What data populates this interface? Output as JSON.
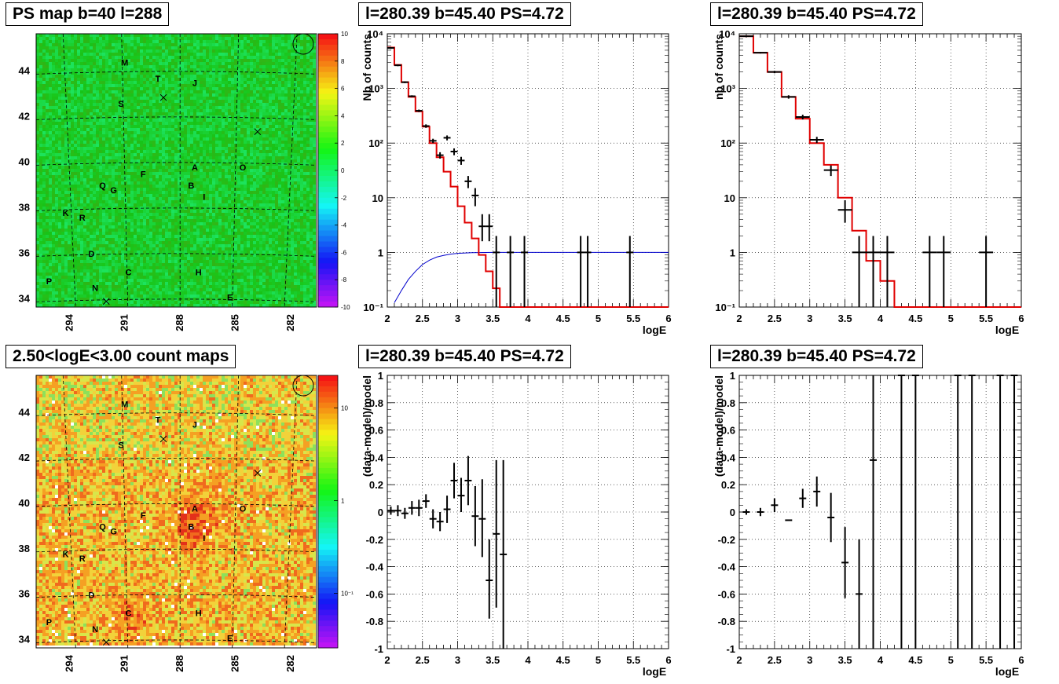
{
  "panels": {
    "map_top": {
      "title": "PS map b=40 l=288"
    },
    "map_bottom": {
      "title": "2.50<logE<3.00 count maps"
    },
    "spec_left": {
      "title": "l=280.39 b=45.40 PS=4.72"
    },
    "spec_right": {
      "title": "l=280.39 b=45.40 PS=4.72"
    },
    "res_left": {
      "title": "l=280.39 b=45.40 PS=4.72"
    },
    "res_right": {
      "title": "l=280.39 b=45.40 PS=4.72"
    }
  },
  "map_axes": {
    "x_ticks": [
      "294",
      "291",
      "288",
      "285",
      "282"
    ],
    "y_ticks": [
      "44",
      "42",
      "40",
      "38",
      "36",
      "34"
    ],
    "letters": [
      {
        "t": "M",
        "l": 291.0,
        "b": 44.2
      },
      {
        "t": "T",
        "l": 289.2,
        "b": 43.5
      },
      {
        "t": "J",
        "l": 287.2,
        "b": 43.3
      },
      {
        "t": "S",
        "l": 291.2,
        "b": 42.4
      },
      {
        "t": "A",
        "l": 287.2,
        "b": 39.6
      },
      {
        "t": "O",
        "l": 284.6,
        "b": 39.6
      },
      {
        "t": "F",
        "l": 290.0,
        "b": 39.3
      },
      {
        "t": "Q",
        "l": 292.2,
        "b": 38.8
      },
      {
        "t": "G",
        "l": 291.6,
        "b": 38.6
      },
      {
        "t": "B",
        "l": 287.4,
        "b": 38.8
      },
      {
        "t": "I",
        "l": 286.7,
        "b": 38.3
      },
      {
        "t": "K",
        "l": 294.2,
        "b": 37.6
      },
      {
        "t": "R",
        "l": 293.3,
        "b": 37.4
      },
      {
        "t": "D",
        "l": 292.8,
        "b": 35.8
      },
      {
        "t": "C",
        "l": 290.8,
        "b": 35.0
      },
      {
        "t": "H",
        "l": 287.0,
        "b": 35.0
      },
      {
        "t": "P",
        "l": 295.1,
        "b": 34.6
      },
      {
        "t": "N",
        "l": 292.6,
        "b": 34.3
      },
      {
        "t": "E",
        "l": 285.3,
        "b": 33.9
      }
    ],
    "crosses": [
      {
        "l": 288.9,
        "b": 42.8
      },
      {
        "l": 283.8,
        "b": 41.3
      },
      {
        "l": 292.0,
        "b": 33.85
      }
    ]
  },
  "colorbar_top": {
    "labels": [
      "10",
      "8",
      "6",
      "4",
      "2",
      "0",
      "-2",
      "-4",
      "-6",
      "-8",
      "-10"
    ],
    "min": -10,
    "max": 10
  },
  "colorbar_bottom": {
    "labels": [
      "10",
      "1",
      "10⁻¹"
    ]
  },
  "chart_data": [
    {
      "type": "line",
      "panel": "spec_left",
      "xlabel": "logE",
      "ylabel": "Nb of counts",
      "xlim": [
        2,
        6
      ],
      "ylim": [
        0.1,
        10000
      ],
      "yscale": "log",
      "x_ticks": [
        "2",
        "2.5",
        "3",
        "3.5",
        "4",
        "4.5",
        "5",
        "5.5",
        "6"
      ],
      "y_ticks": [
        "10⁻¹",
        "1",
        "10",
        "10²",
        "10³",
        "10⁴"
      ],
      "grid": true,
      "model_red": {
        "bins": [
          2.0,
          2.1,
          2.2,
          2.3,
          2.4,
          2.5,
          2.6,
          2.7,
          2.8,
          2.9,
          3.0,
          3.1,
          3.2,
          3.3,
          3.4,
          3.5,
          3.6,
          3.7,
          3.8,
          3.9,
          4.0,
          4.1,
          4.2,
          6.0
        ],
        "values": [
          5600,
          2700,
          1300,
          700,
          380,
          200,
          100,
          55,
          30,
          16,
          7,
          3.5,
          1.8,
          0.9,
          0.45,
          0.22,
          0.1,
          0.05,
          0.025,
          0.012,
          0.006,
          0.003,
          0.1
        ]
      },
      "exposure_blue": {
        "x": [
          2.1,
          2.2,
          2.3,
          2.4,
          2.5,
          2.6,
          2.7,
          2.8,
          2.9,
          3.0,
          3.2,
          3.5,
          6.0
        ],
        "y": [
          0.12,
          0.2,
          0.32,
          0.45,
          0.6,
          0.72,
          0.82,
          0.88,
          0.93,
          0.96,
          0.99,
          1.0,
          1.0
        ]
      },
      "data": [
        {
          "x": 2.05,
          "y": 5500,
          "lo": 5300,
          "hi": 5700
        },
        {
          "x": 2.15,
          "y": 2650,
          "lo": 2550,
          "hi": 2750
        },
        {
          "x": 2.25,
          "y": 1300,
          "lo": 1250,
          "hi": 1350
        },
        {
          "x": 2.35,
          "y": 720,
          "lo": 690,
          "hi": 750
        },
        {
          "x": 2.45,
          "y": 390,
          "lo": 370,
          "hi": 410
        },
        {
          "x": 2.55,
          "y": 205,
          "lo": 190,
          "hi": 220
        },
        {
          "x": 2.65,
          "y": 110,
          "lo": 100,
          "hi": 120
        },
        {
          "x": 2.75,
          "y": 60,
          "lo": 52,
          "hi": 68
        },
        {
          "x": 2.85,
          "y": 125,
          "lo": 112,
          "hi": 138
        },
        {
          "x": 2.95,
          "y": 70,
          "lo": 60,
          "hi": 80
        },
        {
          "x": 3.05,
          "y": 48,
          "lo": 40,
          "hi": 56
        },
        {
          "x": 3.15,
          "y": 20,
          "lo": 15,
          "hi": 25
        },
        {
          "x": 3.25,
          "y": 11,
          "lo": 7,
          "hi": 15
        },
        {
          "x": 3.35,
          "y": 3,
          "lo": 1.6,
          "hi": 5
        },
        {
          "x": 3.45,
          "y": 3,
          "lo": 1.6,
          "hi": 5
        },
        {
          "x": 3.55,
          "y": 1,
          "lo": 0.1,
          "hi": 2
        },
        {
          "x": 3.75,
          "y": 1,
          "lo": 0.1,
          "hi": 2
        },
        {
          "x": 3.95,
          "y": 1,
          "lo": 0.1,
          "hi": 2
        },
        {
          "x": 4.75,
          "y": 1,
          "lo": 0.1,
          "hi": 2
        },
        {
          "x": 4.85,
          "y": 1,
          "lo": 0.1,
          "hi": 2
        },
        {
          "x": 5.45,
          "y": 1,
          "lo": 0.1,
          "hi": 2
        }
      ]
    },
    {
      "type": "line",
      "panel": "spec_right",
      "xlabel": "logE",
      "ylabel": "nb of counts",
      "xlim": [
        2,
        6
      ],
      "ylim": [
        0.1,
        10000
      ],
      "yscale": "log",
      "x_ticks": [
        "2",
        "2.5",
        "3",
        "3.5",
        "4",
        "4.5",
        "5",
        "5.5",
        "6"
      ],
      "y_ticks": [
        "10⁻¹",
        "1",
        "10",
        "10²",
        "10³",
        "10⁴"
      ],
      "grid": true,
      "model_red": {
        "bins": [
          2.0,
          2.2,
          2.4,
          2.6,
          2.8,
          3.0,
          3.2,
          3.4,
          3.6,
          3.8,
          4.0,
          4.2,
          6.0
        ],
        "values": [
          9000,
          4500,
          2000,
          700,
          280,
          100,
          40,
          10,
          2.5,
          0.7,
          0.3,
          0.1
        ]
      },
      "data": [
        {
          "x": 2.1,
          "y": 9000,
          "lo": 8800,
          "hi": 9200
        },
        {
          "x": 2.3,
          "y": 4500,
          "lo": 4350,
          "hi": 4650
        },
        {
          "x": 2.5,
          "y": 2000,
          "lo": 1900,
          "hi": 2100
        },
        {
          "x": 2.7,
          "y": 700,
          "lo": 650,
          "hi": 750
        },
        {
          "x": 2.9,
          "y": 300,
          "lo": 270,
          "hi": 330
        },
        {
          "x": 3.1,
          "y": 115,
          "lo": 100,
          "hi": 130
        },
        {
          "x": 3.3,
          "y": 32,
          "lo": 25,
          "hi": 39
        },
        {
          "x": 3.5,
          "y": 6,
          "lo": 3.5,
          "hi": 9
        },
        {
          "x": 3.7,
          "y": 1,
          "lo": 0.1,
          "hi": 2
        },
        {
          "x": 3.9,
          "y": 1,
          "lo": 0.1,
          "hi": 2
        },
        {
          "x": 4.1,
          "y": 1,
          "lo": 0.1,
          "hi": 2
        },
        {
          "x": 4.7,
          "y": 1,
          "lo": 0.1,
          "hi": 2
        },
        {
          "x": 4.9,
          "y": 1,
          "lo": 0.1,
          "hi": 2
        },
        {
          "x": 5.5,
          "y": 1,
          "lo": 0.1,
          "hi": 2
        }
      ]
    },
    {
      "type": "scatter",
      "panel": "res_left",
      "xlabel": "logE",
      "ylabel": "(data-model)/model",
      "xlim": [
        2,
        6
      ],
      "ylim": [
        -1,
        1
      ],
      "x_ticks": [
        "2",
        "2.5",
        "3",
        "3.5",
        "4",
        "4.5",
        "5",
        "5.5",
        "6"
      ],
      "y_ticks": [
        "-1",
        "-0.8",
        "-0.6",
        "-0.4",
        "-0.2",
        "0",
        "0.2",
        "0.4",
        "0.6",
        "0.8",
        "1"
      ],
      "grid": true,
      "data": [
        {
          "x": 2.05,
          "y": 0.01,
          "lo": -0.02,
          "hi": 0.04
        },
        {
          "x": 2.15,
          "y": 0.01,
          "lo": -0.03,
          "hi": 0.05
        },
        {
          "x": 2.25,
          "y": -0.01,
          "lo": -0.05,
          "hi": 0.03
        },
        {
          "x": 2.35,
          "y": 0.03,
          "lo": -0.02,
          "hi": 0.08
        },
        {
          "x": 2.45,
          "y": 0.03,
          "lo": -0.03,
          "hi": 0.09
        },
        {
          "x": 2.55,
          "y": 0.08,
          "lo": 0.03,
          "hi": 0.13
        },
        {
          "x": 2.65,
          "y": -0.05,
          "lo": -0.12,
          "hi": 0.02
        },
        {
          "x": 2.75,
          "y": -0.07,
          "lo": -0.14,
          "hi": 0.0
        },
        {
          "x": 2.85,
          "y": 0.02,
          "lo": -0.08,
          "hi": 0.12
        },
        {
          "x": 2.95,
          "y": 0.23,
          "lo": 0.1,
          "hi": 0.36
        },
        {
          "x": 3.05,
          "y": 0.12,
          "lo": 0.0,
          "hi": 0.25
        },
        {
          "x": 3.15,
          "y": 0.23,
          "lo": 0.05,
          "hi": 0.41
        },
        {
          "x": 3.25,
          "y": -0.03,
          "lo": -0.25,
          "hi": 0.19
        },
        {
          "x": 3.35,
          "y": -0.05,
          "lo": -0.33,
          "hi": 0.24
        },
        {
          "x": 3.45,
          "y": -0.5,
          "lo": -0.78,
          "hi": -0.2
        },
        {
          "x": 3.55,
          "y": -0.16,
          "lo": -0.7,
          "hi": 0.38
        },
        {
          "x": 3.65,
          "y": -0.31,
          "lo": -1.0,
          "hi": 0.38
        }
      ]
    },
    {
      "type": "scatter",
      "panel": "res_right",
      "xlabel": "logE",
      "ylabel": "(data-model)/model",
      "xlim": [
        2,
        6
      ],
      "ylim": [
        -1,
        1
      ],
      "x_ticks": [
        "2",
        "2.5",
        "3",
        "3.5",
        "4",
        "4.5",
        "5",
        "5.5",
        "6"
      ],
      "y_ticks": [
        "-1",
        "-0.8",
        "-0.6",
        "-0.4",
        "-0.2",
        "0",
        "0.2",
        "0.4",
        "0.6",
        "0.8",
        "1"
      ],
      "grid": true,
      "data": [
        {
          "x": 2.1,
          "y": 0.0,
          "lo": -0.02,
          "hi": 0.02
        },
        {
          "x": 2.3,
          "y": 0.0,
          "lo": -0.03,
          "hi": 0.03
        },
        {
          "x": 2.5,
          "y": 0.05,
          "lo": 0.0,
          "hi": 0.1
        },
        {
          "x": 2.7,
          "y": -0.06,
          "lo": -0.06,
          "hi": -0.06
        },
        {
          "x": 2.9,
          "y": 0.1,
          "lo": 0.03,
          "hi": 0.17
        },
        {
          "x": 3.1,
          "y": 0.15,
          "lo": 0.04,
          "hi": 0.26
        },
        {
          "x": 3.3,
          "y": -0.04,
          "lo": -0.22,
          "hi": 0.14
        },
        {
          "x": 3.5,
          "y": -0.37,
          "lo": -0.63,
          "hi": -0.11
        },
        {
          "x": 3.7,
          "y": -0.6,
          "lo": -1.0,
          "hi": -0.2
        },
        {
          "x": 3.9,
          "y": 0.38,
          "lo": -1.0,
          "hi": 1.0
        },
        {
          "x": 4.3,
          "y": 1.0,
          "lo": -1.0,
          "hi": 1.0
        },
        {
          "x": 4.5,
          "y": 1.0,
          "lo": -1.0,
          "hi": 1.0
        },
        {
          "x": 5.1,
          "y": 1.0,
          "lo": -1.0,
          "hi": 1.0
        },
        {
          "x": 5.3,
          "y": 1.0,
          "lo": -1.0,
          "hi": 1.0
        },
        {
          "x": 5.7,
          "y": 1.0,
          "lo": -1.0,
          "hi": 1.0
        },
        {
          "x": 5.9,
          "y": 1.0,
          "lo": -1.0,
          "hi": 1.0
        }
      ]
    }
  ]
}
